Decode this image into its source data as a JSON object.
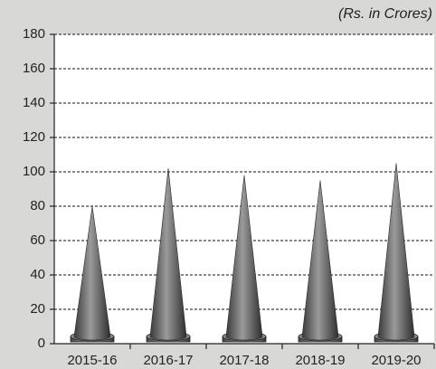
{
  "chart_data": {
    "type": "bar",
    "annotation": "(Rs. in Crores)",
    "categories": [
      "2015-16",
      "2016-17",
      "2017-18",
      "2018-19",
      "2019-20"
    ],
    "values": [
      80,
      102,
      98,
      95,
      105
    ],
    "color": "#6e6e6e",
    "ylim": [
      0,
      180
    ],
    "yticks": [
      0,
      20,
      40,
      60,
      80,
      100,
      120,
      140,
      160,
      180
    ],
    "grid": true
  }
}
